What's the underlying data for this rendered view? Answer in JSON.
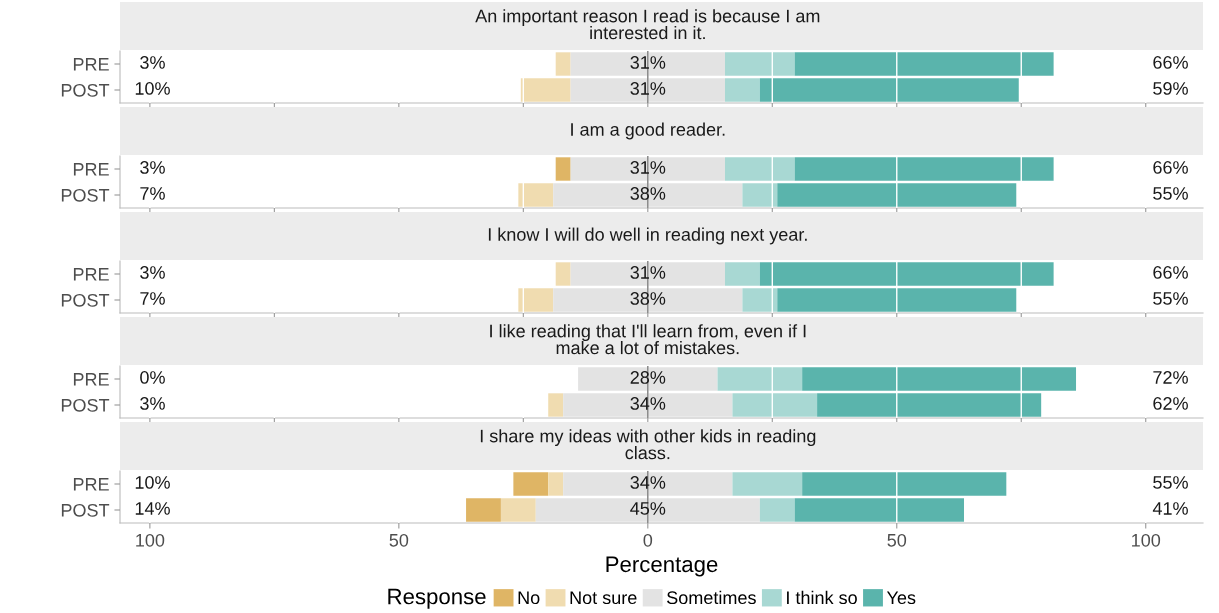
{
  "chart_data": [
    {
      "type": "bar",
      "orientation": "horizontal",
      "title": "An important reason I read is because I am\ninterested in it.",
      "categories": [
        "PRE",
        "POST"
      ],
      "series": [
        {
          "color": "#dfb565",
          "values": [
            null,
            null
          ],
          "base": [
            null,
            null
          ]
        },
        {
          "color": "#f0dcb0",
          "values": [
            3,
            10
          ],
          "base": [
            -18.5,
            -25.5
          ]
        },
        {
          "color": "#e3e3e3",
          "values": [
            31,
            31
          ],
          "base": [
            -15.5,
            -15.5
          ]
        },
        {
          "color": "#a8d8d3",
          "values": [
            14,
            7
          ],
          "base": [
            15.5,
            15.5
          ]
        },
        {
          "color": "#5ab4ac",
          "values": [
            52,
            52
          ],
          "base": [
            29.5,
            22.5
          ]
        }
      ],
      "annotations": [
        "3%",
        "31%",
        "66%",
        "10%",
        "31%",
        "59%"
      ],
      "xlim": [
        -106,
        111.5
      ],
      "tick_labels": "y",
      "grid": "x",
      "ref_lines": [
        {
          "axis": "x",
          "value": 0,
          "color": "#7f7f7f"
        }
      ]
    },
    {
      "type": "bar",
      "orientation": "horizontal",
      "title": "I am a good reader.",
      "categories": [
        "PRE",
        "POST"
      ],
      "series": [
        {
          "color": "#dfb565",
          "values": [
            3,
            null
          ],
          "base": [
            -18.5,
            null
          ]
        },
        {
          "color": "#f0dcb0",
          "values": [
            null,
            7
          ],
          "base": [
            null,
            -26
          ]
        },
        {
          "color": "#e3e3e3",
          "values": [
            31,
            38
          ],
          "base": [
            -15.5,
            -19
          ]
        },
        {
          "color": "#a8d8d3",
          "values": [
            14,
            7
          ],
          "base": [
            15.5,
            19
          ]
        },
        {
          "color": "#5ab4ac",
          "values": [
            52,
            48
          ],
          "base": [
            29.5,
            26
          ]
        }
      ],
      "annotations": [
        "3%",
        "31%",
        "66%",
        "7%",
        "38%",
        "55%"
      ],
      "xlim": [
        -106,
        111.5
      ],
      "tick_labels": "y",
      "grid": "x",
      "ref_lines": [
        {
          "axis": "x",
          "value": 0,
          "color": "#7f7f7f"
        }
      ]
    },
    {
      "type": "bar",
      "orientation": "horizontal",
      "title": "I know I will do well in reading next year.",
      "categories": [
        "PRE",
        "POST"
      ],
      "series": [
        {
          "color": "#dfb565",
          "values": [
            null,
            null
          ],
          "base": [
            null,
            null
          ]
        },
        {
          "color": "#f0dcb0",
          "values": [
            3,
            7
          ],
          "base": [
            -18.5,
            -26
          ]
        },
        {
          "color": "#e3e3e3",
          "values": [
            31,
            38
          ],
          "base": [
            -15.5,
            -19
          ]
        },
        {
          "color": "#a8d8d3",
          "values": [
            7,
            7
          ],
          "base": [
            15.5,
            19
          ]
        },
        {
          "color": "#5ab4ac",
          "values": [
            59,
            48
          ],
          "base": [
            22.5,
            26
          ]
        }
      ],
      "annotations": [
        "3%",
        "31%",
        "66%",
        "7%",
        "38%",
        "55%"
      ],
      "xlim": [
        -106,
        111.5
      ],
      "tick_labels": "y",
      "grid": "x",
      "ref_lines": [
        {
          "axis": "x",
          "value": 0,
          "color": "#7f7f7f"
        }
      ]
    },
    {
      "type": "bar",
      "orientation": "horizontal",
      "title": "I like reading that I'll learn from, even if I\nmake a lot of mistakes.",
      "categories": [
        "PRE",
        "POST"
      ],
      "series": [
        {
          "color": "#dfb565",
          "values": [
            null,
            null
          ],
          "base": [
            null,
            null
          ]
        },
        {
          "color": "#f0dcb0",
          "values": [
            null,
            3
          ],
          "base": [
            null,
            -20
          ]
        },
        {
          "color": "#e3e3e3",
          "values": [
            28,
            34
          ],
          "base": [
            -14,
            -17
          ]
        },
        {
          "color": "#a8d8d3",
          "values": [
            17,
            17
          ],
          "base": [
            14,
            17
          ]
        },
        {
          "color": "#5ab4ac",
          "values": [
            55,
            45
          ],
          "base": [
            31,
            34
          ]
        }
      ],
      "annotations": [
        "0%",
        "28%",
        "72%",
        "3%",
        "34%",
        "62%"
      ],
      "xlim": [
        -106,
        111.5
      ],
      "tick_labels": "y",
      "grid": "x",
      "ref_lines": [
        {
          "axis": "x",
          "value": 0,
          "color": "#7f7f7f"
        }
      ]
    },
    {
      "type": "bar",
      "orientation": "horizontal",
      "title": "I share my ideas with other kids in reading\nclass.",
      "categories": [
        "PRE",
        "POST"
      ],
      "series": [
        {
          "name": "No",
          "color": "#dfb565",
          "values": [
            7,
            7
          ],
          "base": [
            -27,
            -36.5
          ]
        },
        {
          "name": "Not sure",
          "color": "#f0dcb0",
          "values": [
            3,
            7
          ],
          "base": [
            -20,
            -29.5
          ]
        },
        {
          "name": "Sometimes",
          "color": "#e3e3e3",
          "values": [
            34,
            45
          ],
          "base": [
            -17,
            -22.5
          ]
        },
        {
          "name": "I think so",
          "color": "#a8d8d3",
          "values": [
            14,
            7
          ],
          "base": [
            17,
            22.5
          ]
        },
        {
          "name": "Yes",
          "color": "#5ab4ac",
          "values": [
            41,
            34
          ],
          "base": [
            31,
            29.5
          ]
        }
      ],
      "annotations": [
        "10%",
        "34%",
        "55%",
        "14%",
        "45%",
        "41%"
      ],
      "xlabel": "Percentage",
      "legend": "bottom",
      "legend_title": "Response",
      "xlim": [
        -106,
        111.5
      ],
      "xticks": [
        {
          "value": -100,
          "label": "100"
        },
        {
          "value": -50,
          "label": "50"
        },
        0,
        50,
        100
      ],
      "grid": "x",
      "ref_lines": [
        {
          "axis": "x",
          "value": 0,
          "color": "#7f7f7f"
        }
      ]
    }
  ]
}
